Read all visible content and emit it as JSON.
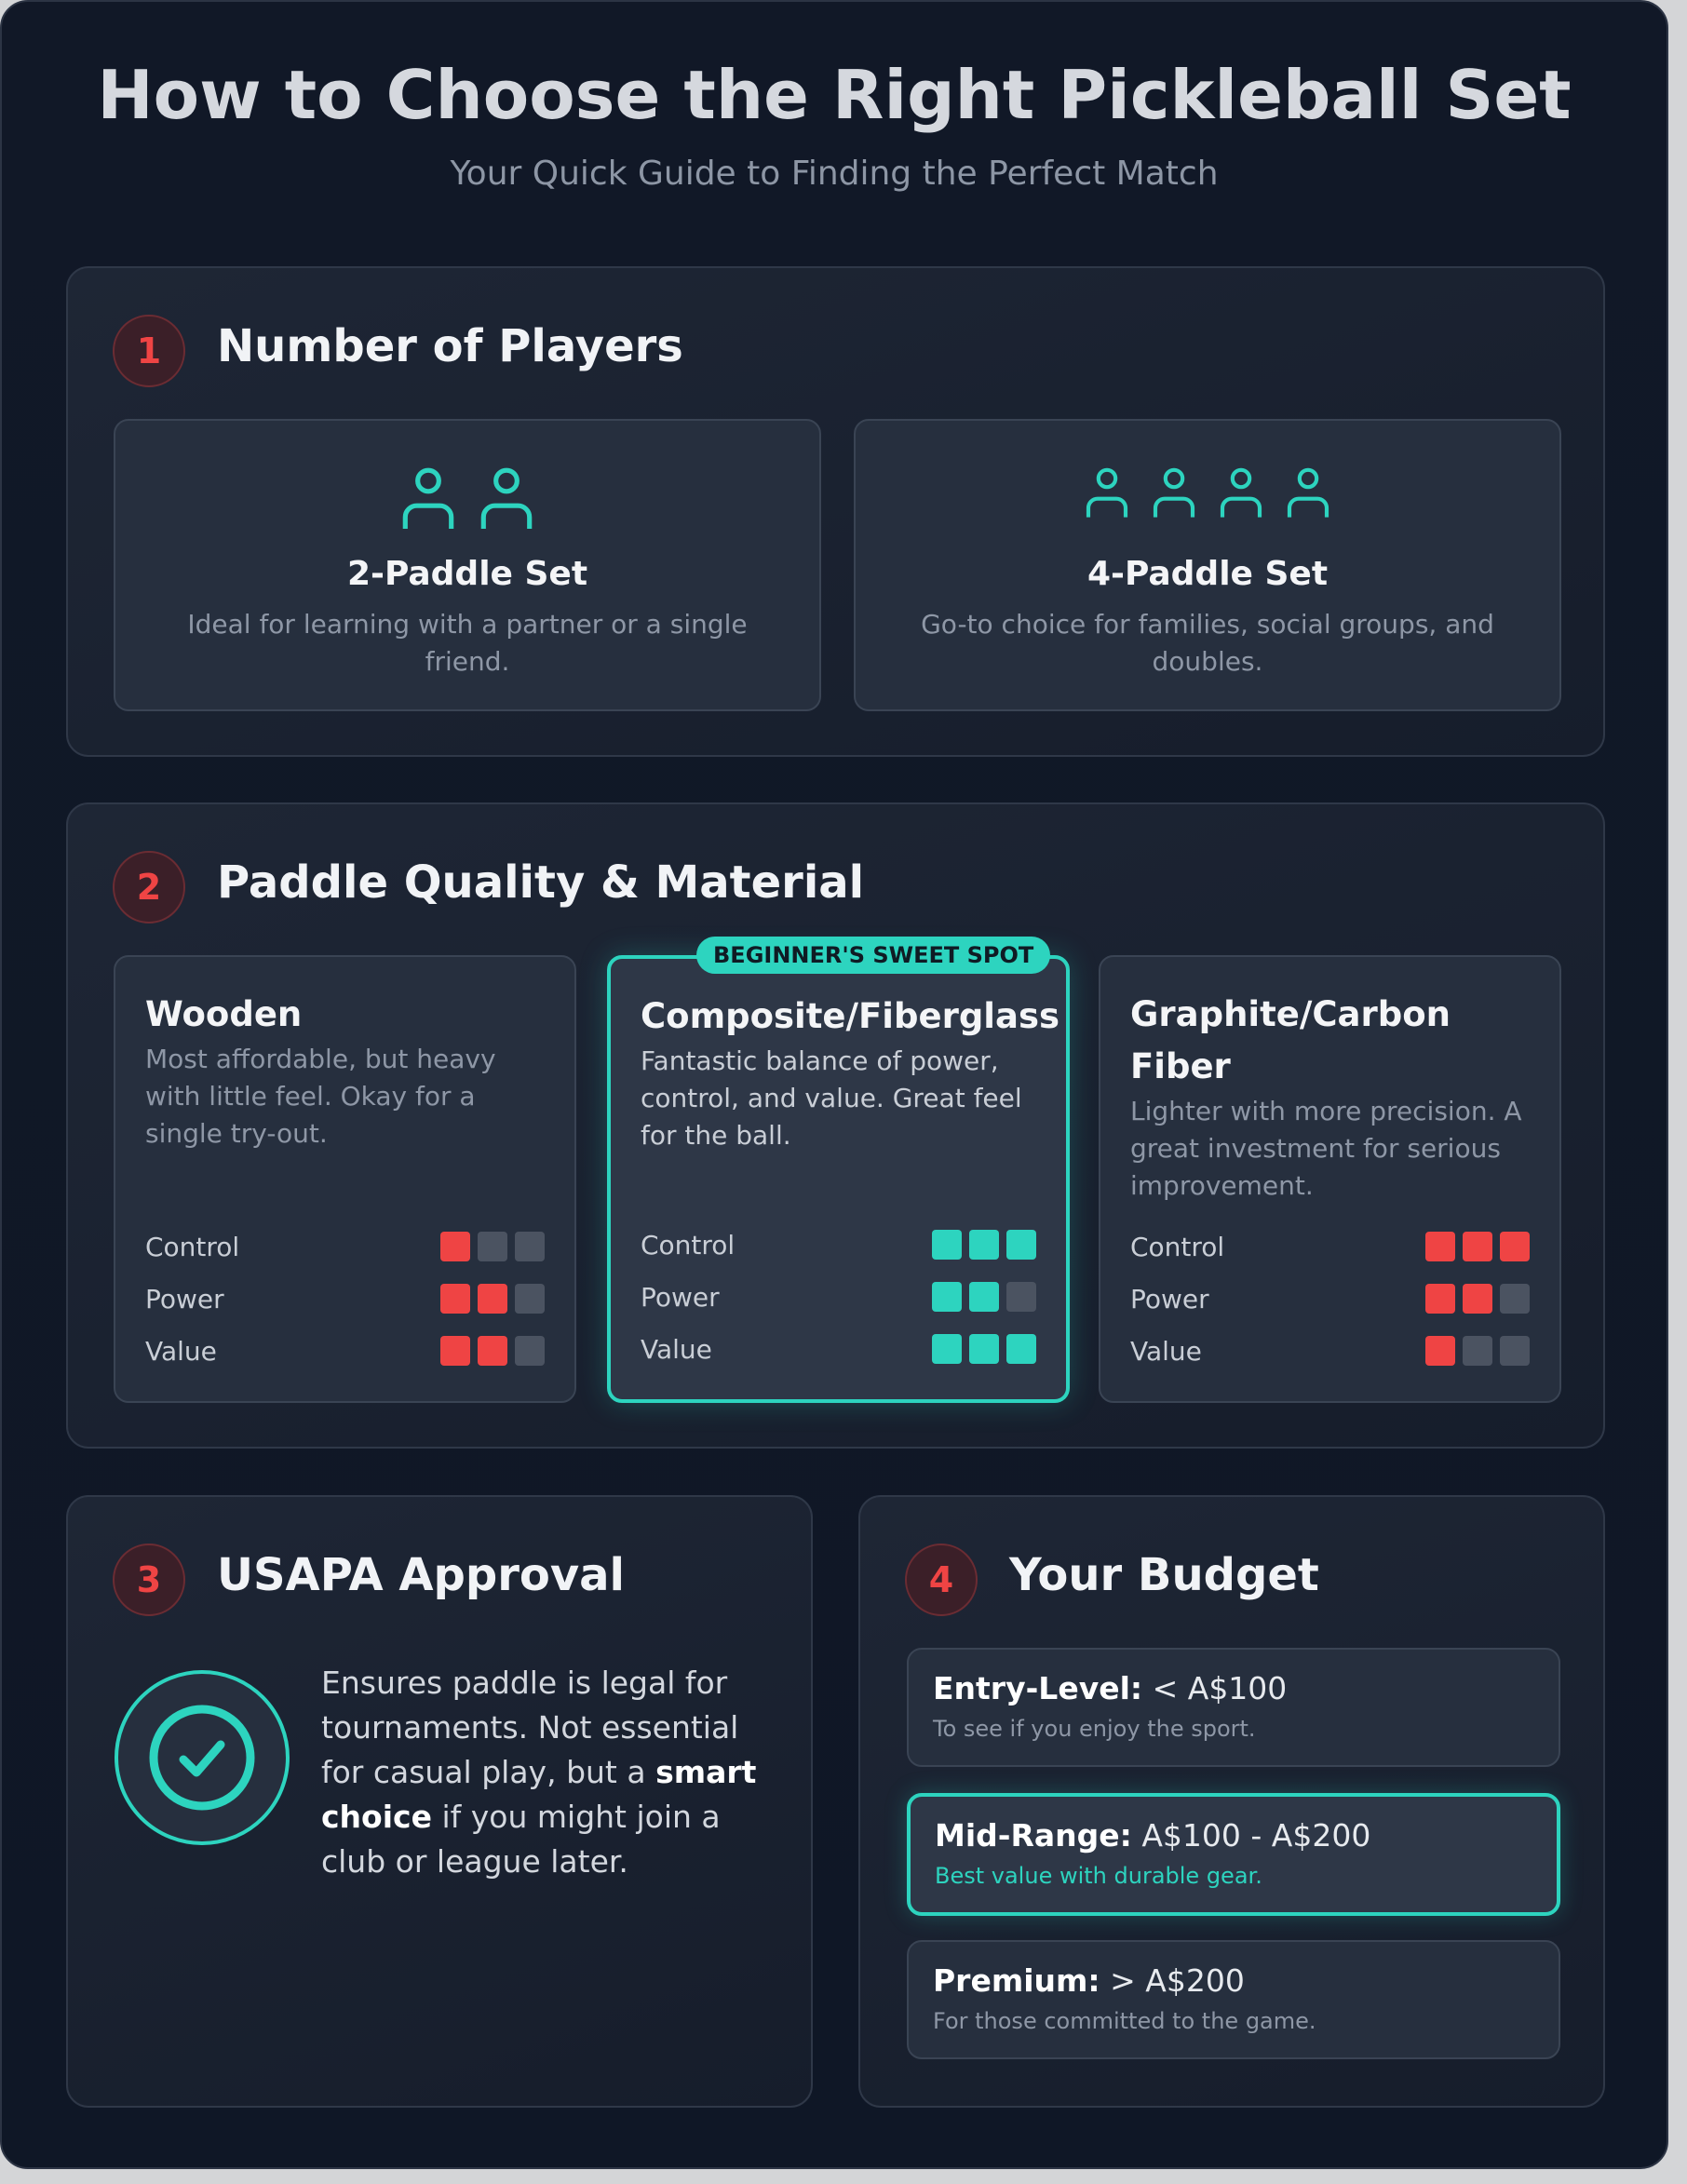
{
  "header": {
    "title": "How to Choose the Right Pickleball Set",
    "subtitle": "Your Quick Guide to Finding the Perfect Match"
  },
  "colors": {
    "accent": "#2dd4bf",
    "rating_red": "#ef4444",
    "rating_empty": "#4b5361",
    "background": "#111827"
  },
  "players": {
    "number": "1",
    "title": "Number of Players",
    "options": [
      {
        "title": "2-Paddle Set",
        "desc": "Ideal for learning with a partner or a single friend.",
        "icon": "user-icon",
        "count": 2
      },
      {
        "title": "4-Paddle Set",
        "desc": "Go-to choice for families, social groups, and doubles.",
        "icon": "user-icon",
        "count": 4
      }
    ]
  },
  "material": {
    "number": "2",
    "title": "Paddle Quality & Material",
    "labels": [
      "Control",
      "Power",
      "Value"
    ],
    "max_rating": 3,
    "options": [
      {
        "title": "Wooden",
        "desc": "Most affordable, but heavy with little feel. Okay for a single try-out.",
        "ratings": [
          1,
          2,
          2
        ],
        "featured": false
      },
      {
        "title": "Composite/Fiberglass",
        "desc": "Fantastic balance of power, control, and value. Great feel for the ball.",
        "ratings": [
          3,
          2,
          3
        ],
        "featured": true,
        "badge": "BEGINNER'S SWEET SPOT"
      },
      {
        "title": "Graphite/Carbon Fiber",
        "desc": "Lighter with more precision. A great investment for serious improvement.",
        "ratings": [
          3,
          2,
          1
        ],
        "featured": false
      }
    ]
  },
  "usapa": {
    "number": "3",
    "title": "USAPA Approval",
    "text_before": "Ensures paddle is legal for tournaments. Not essential for casual play, but a ",
    "text_bold": "smart choice",
    "text_after": " if you might join a club or league later.",
    "icon": "check-circle-icon"
  },
  "budget": {
    "number": "4",
    "title": "Your Budget",
    "tiers": [
      {
        "label": "Entry-Level:",
        "range": " < A$100",
        "note": "To see if you enjoy the sport.",
        "featured": false
      },
      {
        "label": "Mid-Range:",
        "range": " A$100 - A$200",
        "note": "Best value with durable gear.",
        "featured": true
      },
      {
        "label": "Premium:",
        "range": " > A$200",
        "note": "For those committed to the game.",
        "featured": false
      }
    ]
  }
}
